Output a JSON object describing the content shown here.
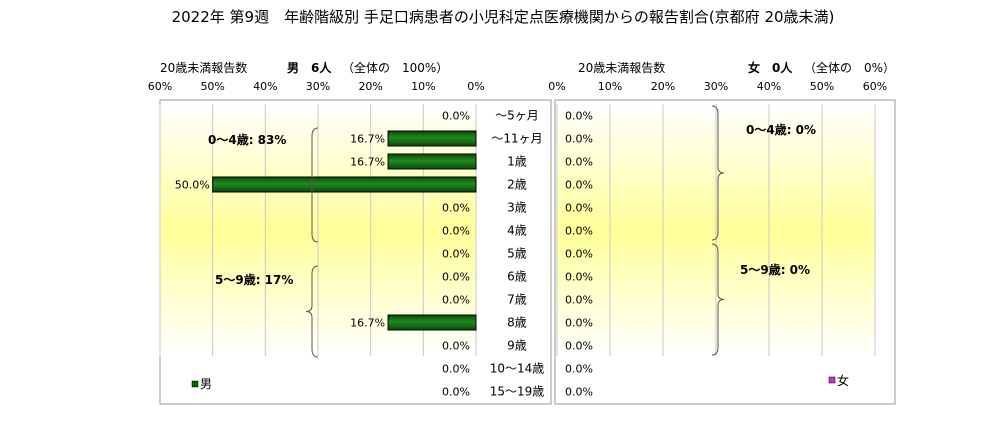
{
  "title": "2022年 第9週　年齢階級別 手足口病患者の小児科定点医療機関からの報告割合(京都府 20歳未満)",
  "chart_data": {
    "type": "bar",
    "orientation": "horizontal-butterfly",
    "categories": [
      "～5ヶ月",
      "～11ヶ月",
      "1歳",
      "2歳",
      "3歳",
      "4歳",
      "5歳",
      "6歳",
      "7歳",
      "8歳",
      "9歳",
      "10～14歳",
      "15～19歳"
    ],
    "xlim": [
      0,
      60
    ],
    "x_ticks": [
      "60%",
      "50%",
      "40%",
      "30%",
      "20%",
      "10%",
      "0%"
    ],
    "x_ticks_right": [
      "0%",
      "10%",
      "20%",
      "30%",
      "40%",
      "50%",
      "60%"
    ],
    "background": "gradient white-yellow",
    "panels": [
      {
        "side": "left",
        "series_name": "男",
        "color": "#006600",
        "header_label": "20歳未満報告数",
        "header_count": "男　6人",
        "header_total": "（全体の　100%）",
        "values": [
          0,
          16.7,
          16.7,
          50.0,
          0,
          0,
          0,
          0,
          0,
          16.7,
          0,
          0,
          0
        ],
        "value_labels": [
          "0.0%",
          "16.7%",
          "16.7%",
          "50.0%",
          "0.0%",
          "0.0%",
          "0.0%",
          "0.0%",
          "0.0%",
          "16.7%",
          "0.0%",
          "0.0%",
          "0.0%"
        ],
        "groups": [
          {
            "label": "0～4歳: 83%",
            "from": 0,
            "to": 5
          },
          {
            "label": "5～9歳: 17%",
            "from": 6,
            "to": 10
          }
        ],
        "legend": "男",
        "legend_position": "bottom-left"
      },
      {
        "side": "right",
        "series_name": "女",
        "color": "#cc33cc",
        "header_label": "20歳未満報告数",
        "header_count": "女　0人",
        "header_total": "（全体の　0%）",
        "values": [
          0,
          0,
          0,
          0,
          0,
          0,
          0,
          0,
          0,
          0,
          0,
          0,
          0
        ],
        "value_labels": [
          "0.0%",
          "0.0%",
          "0.0%",
          "0.0%",
          "0.0%",
          "0.0%",
          "0.0%",
          "0.0%",
          "0.0%",
          "0.0%",
          "0.0%",
          "0.0%",
          "0.0%"
        ],
        "groups": [
          {
            "label": "0～4歳: 0%",
            "from": 0,
            "to": 5
          },
          {
            "label": "5～9歳: 0%",
            "from": 6,
            "to": 10
          }
        ],
        "legend": "女",
        "legend_position": "bottom-right"
      }
    ]
  }
}
